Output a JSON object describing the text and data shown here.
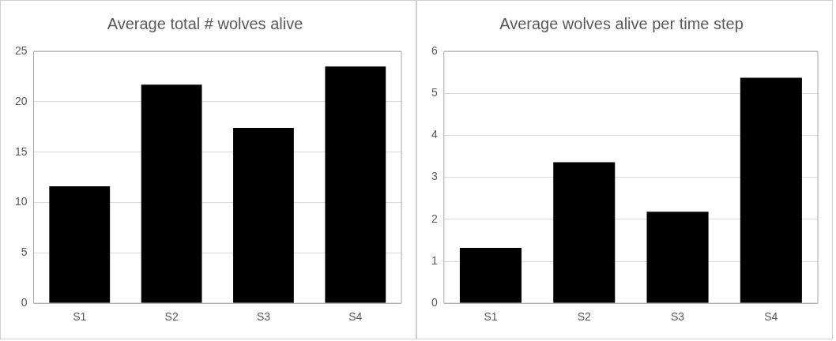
{
  "chart_data": [
    {
      "type": "bar",
      "title": "Average total # wolves alive",
      "categories": [
        "S1",
        "S2",
        "S3",
        "S4"
      ],
      "values": [
        11.6,
        21.7,
        17.4,
        23.5
      ],
      "color": "#000000",
      "ylim": [
        0,
        25
      ],
      "yticks": [
        0,
        5,
        10,
        15,
        20,
        25
      ],
      "grid": "y"
    },
    {
      "type": "bar",
      "title": "Average wolves alive per time step",
      "categories": [
        "S1",
        "S2",
        "S3",
        "S4"
      ],
      "values": [
        1.32,
        3.36,
        2.18,
        5.37
      ],
      "color": "#000000",
      "ylim": [
        0,
        6
      ],
      "yticks": [
        0,
        1,
        2,
        3,
        4,
        5,
        6
      ],
      "grid": "y"
    }
  ]
}
